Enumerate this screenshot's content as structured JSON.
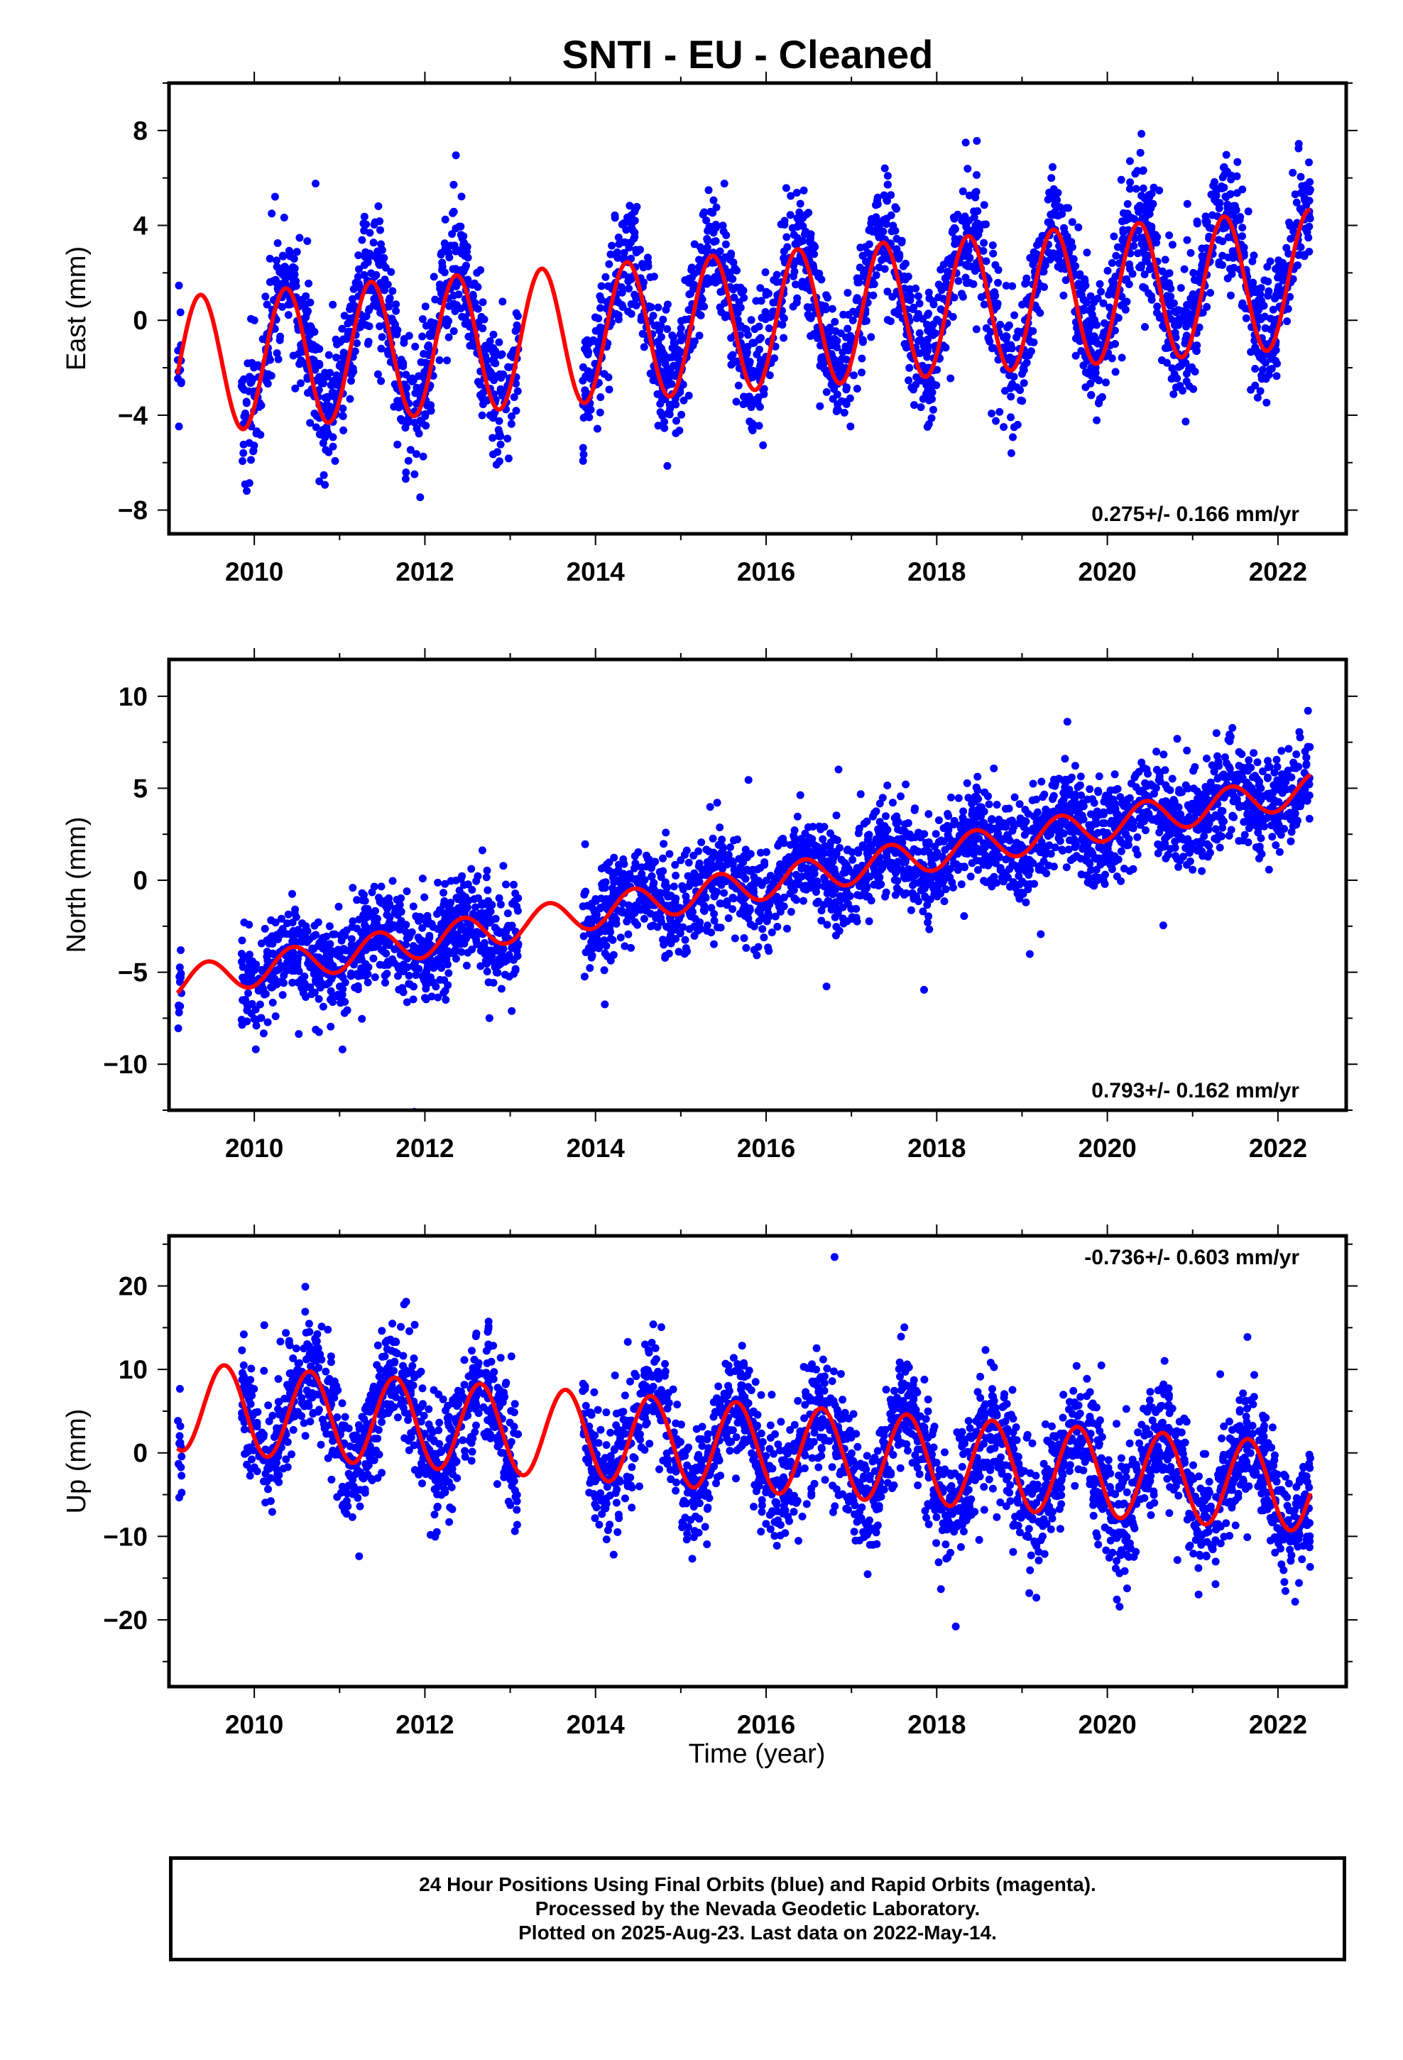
{
  "title": "SNTI  - EU - Cleaned",
  "colors": {
    "data": "#0000ff",
    "fit": "#ff0000",
    "axes": "#000000"
  },
  "xlabel": "Time (year)",
  "footer": {
    "line1": "24 Hour Positions Using Final Orbits (blue) and Rapid Orbits (magenta).",
    "line2": "Processed by the Nevada Geodetic Laboratory.",
    "line3": "Plotted on 2025-Aug-23. Last data on 2022-May-14."
  },
  "chart_data": [
    {
      "type": "scatter",
      "name": "east",
      "ylabel": "East (mm)",
      "xlim": [
        2009.0,
        2022.8
      ],
      "ylim": [
        -9.0,
        10.0
      ],
      "xticks": [
        2010,
        2012,
        2014,
        2016,
        2018,
        2020,
        2022
      ],
      "yticks": [
        -8,
        -4,
        0,
        4,
        8
      ],
      "rate_label": "0.275+/- 0.166 mm/yr",
      "rate_position": "bottom-right",
      "series": [
        {
          "name": "",
          "kind": "points",
          "segments": [
            [
              2009.1,
              2009.15
            ],
            [
              2009.85,
              2013.1
            ],
            [
              2013.85,
              2022.38
            ]
          ],
          "trend_start": -1.5,
          "trend_rate": 0.275,
          "annual_amp": 2.8,
          "annual_peak": 2009.37,
          "scatter_sd": 1.3
        },
        {
          "name": "",
          "kind": "fit",
          "x": [
            2009.1,
            2022.38
          ],
          "trend_start": -1.9,
          "trend_rate": 0.275,
          "annual_amp": 2.9,
          "annual_peak": 2009.37
        }
      ]
    },
    {
      "type": "scatter",
      "name": "north",
      "ylabel": "North (mm)",
      "xlim": [
        2009.0,
        2022.8
      ],
      "ylim": [
        -12.5,
        12.0
      ],
      "xticks": [
        2010,
        2012,
        2014,
        2016,
        2018,
        2020,
        2022
      ],
      "yticks": [
        -10,
        -5,
        0,
        5,
        10
      ],
      "rate_label": "0.793+/- 0.162 mm/yr",
      "rate_position": "bottom-right",
      "series": [
        {
          "name": "",
          "kind": "points",
          "segments": [
            [
              2009.1,
              2009.15
            ],
            [
              2009.85,
              2013.1
            ],
            [
              2013.85,
              2022.38
            ]
          ],
          "trend_start": -5.6,
          "trend_rate": 0.793,
          "annual_amp": 0.9,
          "annual_peak": 2009.45,
          "scatter_sd": 1.3
        },
        {
          "name": "",
          "kind": "fit",
          "x": [
            2009.1,
            2022.38
          ],
          "trend_start": -5.6,
          "trend_rate": 0.793,
          "annual_amp": 0.9,
          "annual_peak": 2009.45
        }
      ]
    },
    {
      "type": "scatter",
      "name": "up",
      "ylabel": "Up (mm)",
      "xlim": [
        2009.0,
        2022.8
      ],
      "ylim": [
        -28.0,
        26.0
      ],
      "xticks": [
        2010,
        2012,
        2014,
        2016,
        2018,
        2020,
        2022
      ],
      "yticks": [
        -20,
        -10,
        0,
        10,
        20
      ],
      "rate_label": "-0.736+/- 0.603 mm/yr",
      "rate_position": "top-right",
      "series": [
        {
          "name": "",
          "kind": "points",
          "segments": [
            [
              2009.1,
              2009.15
            ],
            [
              2009.85,
              2013.1
            ],
            [
              2013.85,
              2022.38
            ]
          ],
          "trend_start": 5.6,
          "trend_rate": -0.736,
          "annual_amp": 5.3,
          "annual_peak": 2009.65,
          "scatter_sd": 3.5
        },
        {
          "name": "",
          "kind": "fit",
          "x": [
            2009.1,
            2022.38
          ],
          "trend_start": 5.6,
          "trend_rate": -0.736,
          "annual_amp": 5.3,
          "annual_peak": 2009.65
        }
      ]
    }
  ]
}
